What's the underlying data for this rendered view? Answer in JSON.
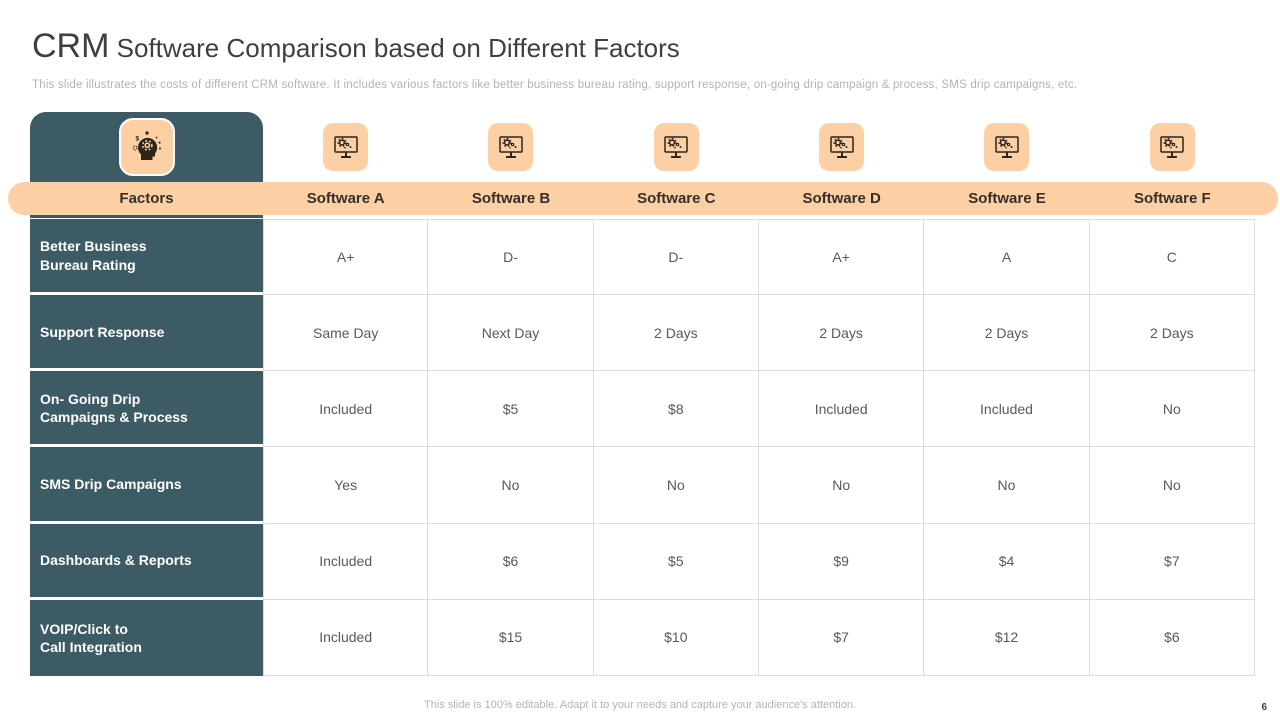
{
  "slide": {
    "title": {
      "emphasis": "CRM",
      "rest": " Software Comparison based on Different Factors"
    },
    "subtitle": "This slide illustrates the costs of different CRM software. It includes various factors like better business bureau rating, support response, on-going drip campaign & process, SMS drip campaigns, etc.",
    "footer_note": "This slide is 100% editable. Adapt it to your needs and capture your audience's attention.",
    "page_number": "6"
  },
  "colors": {
    "teal": "#3c5b64",
    "peach": "#fcd0a4",
    "icon_ink": "#2e2418",
    "cell_text": "#595959",
    "header_text": "#33302b",
    "grid_line": "#dcdcdc"
  },
  "icons": {
    "factors_column": "idea-head-icon",
    "software_columns": "software-monitor-icon"
  },
  "table": {
    "type": "table",
    "factors_label": "Factors",
    "software_columns": [
      "Software A",
      "Software B",
      "Software C",
      "Software D",
      "Software E",
      "Software F"
    ],
    "rows": [
      {
        "factor": "Better Business\nBureau Rating",
        "values": [
          "A+",
          "D-",
          "D-",
          "A+",
          "A",
          "C"
        ]
      },
      {
        "factor": "Support Response",
        "values": [
          "Same Day",
          "Next Day",
          "2 Days",
          "2 Days",
          "2 Days",
          "2 Days"
        ]
      },
      {
        "factor": "On- Going Drip\nCampaigns & Process",
        "values": [
          "Included",
          "$5",
          "$8",
          "Included",
          "Included",
          "No"
        ]
      },
      {
        "factor": "SMS Drip Campaigns",
        "values": [
          "Yes",
          "No",
          "No",
          "No",
          "No",
          "No"
        ]
      },
      {
        "factor": "Dashboards & Reports",
        "values": [
          "Included",
          "$6",
          "$5",
          "$9",
          "$4",
          "$7"
        ]
      },
      {
        "factor": "VOIP/Click to\nCall Integration",
        "values": [
          "Included",
          "$15",
          "$10",
          "$7",
          "$12",
          "$6"
        ]
      }
    ]
  }
}
